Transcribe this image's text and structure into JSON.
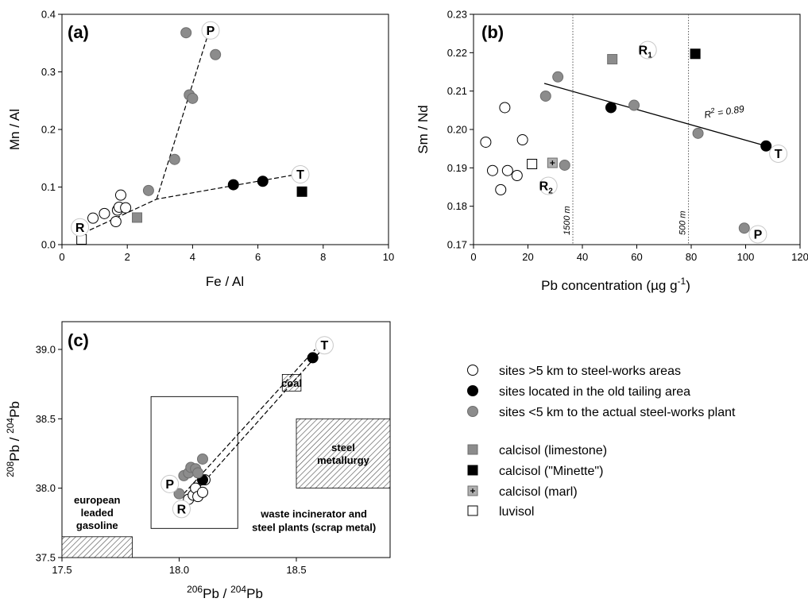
{
  "chart_data": [
    {
      "panel": "(a)",
      "type": "scatter",
      "xlabel": "Fe / Al",
      "ylabel": "Mn / Al",
      "xlim": [
        0,
        10
      ],
      "ylim": [
        0,
        0.4
      ],
      "xticks": [
        "0",
        "2",
        "4",
        "6",
        "8",
        "10"
      ],
      "yticks": [
        "0.0",
        "0.1",
        "0.2",
        "0.3",
        "0.4"
      ],
      "series": [
        {
          "class": "open-circle",
          "points": [
            [
              0.95,
              0.046
            ],
            [
              1.3,
              0.054
            ],
            [
              1.65,
              0.04
            ],
            [
              1.7,
              0.06
            ],
            [
              1.75,
              0.065
            ],
            [
              1.8,
              0.086
            ],
            [
              1.95,
              0.064
            ]
          ]
        },
        {
          "class": "black-circle",
          "points": [
            [
              5.25,
              0.104
            ],
            [
              6.15,
              0.11
            ]
          ]
        },
        {
          "class": "gray-circle",
          "points": [
            [
              2.65,
              0.094
            ],
            [
              3.45,
              0.148
            ],
            [
              3.8,
              0.368
            ],
            [
              3.9,
              0.26
            ],
            [
              4.0,
              0.254
            ],
            [
              4.7,
              0.33
            ]
          ]
        },
        {
          "class": "gray-square",
          "points": [
            [
              2.3,
              0.047
            ]
          ]
        },
        {
          "class": "black-square",
          "points": [
            [
              7.35,
              0.092
            ]
          ]
        },
        {
          "class": "open-square",
          "points": [
            [
              0.6,
              0.009
            ]
          ]
        }
      ],
      "trend_lines": [
        {
          "points": [
            [
              2.9,
              0.079
            ],
            [
              4.5,
              0.37
            ]
          ]
        },
        {
          "points": [
            [
              0.65,
              0.02
            ],
            [
              2.9,
              0.079
            ],
            [
              7.2,
              0.122
            ]
          ]
        }
      ],
      "site_labels": [
        {
          "text": "P",
          "x": 4.55,
          "y": 0.372
        },
        {
          "text": "T",
          "x": 7.3,
          "y": 0.122
        },
        {
          "text": "R",
          "x": 0.55,
          "y": 0.03
        }
      ]
    },
    {
      "panel": "(b)",
      "type": "scatter",
      "xlabel": "Pb concentration (µg g",
      "xlabel_sup": "-1",
      "xlabel_end": ")",
      "ylabel": "Sm / Nd",
      "xlim": [
        0,
        120
      ],
      "ylim": [
        0.17,
        0.23
      ],
      "xticks": [
        "0",
        "20",
        "40",
        "60",
        "80",
        "100",
        "120"
      ],
      "yticks": [
        "0.17",
        "0.18",
        "0.19",
        "0.20",
        "0.21",
        "0.22",
        "0.23"
      ],
      "series": [
        {
          "class": "open-circle",
          "points": [
            [
              4.5,
              0.1967
            ],
            [
              7,
              0.1893
            ],
            [
              10,
              0.1843
            ],
            [
              11.5,
              0.2057
            ],
            [
              12.5,
              0.1893
            ],
            [
              16,
              0.188
            ],
            [
              18,
              0.1973
            ]
          ]
        },
        {
          "class": "black-circle",
          "points": [
            [
              50.5,
              0.2057
            ],
            [
              107.5,
              0.1957
            ]
          ]
        },
        {
          "class": "gray-circle",
          "points": [
            [
              26.5,
              0.2087
            ],
            [
              31,
              0.2137
            ],
            [
              33.5,
              0.1907
            ],
            [
              59,
              0.2063
            ],
            [
              82.5,
              0.199
            ],
            [
              99.5,
              0.1743
            ]
          ]
        },
        {
          "class": "gray-square",
          "points": [
            [
              51,
              0.2183
            ]
          ]
        },
        {
          "class": "black-square",
          "points": [
            [
              81.5,
              0.2197
            ]
          ]
        },
        {
          "class": "plus-square",
          "points": [
            [
              29,
              0.1913
            ]
          ]
        },
        {
          "class": "open-square",
          "points": [
            [
              21.5,
              0.191
            ]
          ]
        }
      ],
      "regression": {
        "x": [
          26,
          107.5
        ],
        "y": [
          0.212,
          0.1957
        ],
        "label_base": "R",
        "label_sup": "2",
        "label_rest": " = 0.89"
      },
      "distance_lines": [
        {
          "x": 36.5,
          "label": "1500 m"
        },
        {
          "x": 79,
          "label": "500 m"
        }
      ],
      "site_labels": [
        {
          "text": "R",
          "sub": "1",
          "x": 64,
          "y": 0.2207
        },
        {
          "text": "R",
          "sub": "2",
          "x": 27.5,
          "y": 0.1853
        },
        {
          "text": "T",
          "x": 112,
          "y": 0.1937
        },
        {
          "text": "P",
          "x": 104.5,
          "y": 0.1727
        }
      ]
    },
    {
      "panel": "(c)",
      "type": "scatter",
      "xlabel_sup": "206",
      "xlabel_base": "Pb / ",
      "xlabel_sup2": "204",
      "xlabel_end": "Pb",
      "ylabel_sup": "208",
      "ylabel_base": "Pb / ",
      "ylabel_sup2": "204",
      "ylabel_end": "Pb",
      "xlim": [
        17.5,
        18.9
      ],
      "ylim": [
        37.5,
        39.2
      ],
      "xticks": [
        "17.5",
        "18.0",
        "18.5"
      ],
      "yticks": [
        "37.5",
        "38.0",
        "38.5",
        "39.0"
      ],
      "series": [
        {
          "class": "open-circle",
          "points": [
            [
              18.04,
              37.92
            ],
            [
              18.06,
              37.95
            ],
            [
              18.07,
              38.0
            ],
            [
              18.08,
              37.94
            ],
            [
              18.1,
              37.97
            ],
            [
              18.11,
              38.06
            ]
          ]
        },
        {
          "class": "black-circle",
          "points": [
            [
              18.1,
              38.06
            ],
            [
              18.57,
              38.94
            ]
          ]
        },
        {
          "class": "gray-circle",
          "points": [
            [
              18.0,
              37.96
            ],
            [
              18.02,
              38.09
            ],
            [
              18.04,
              38.11
            ],
            [
              18.05,
              38.15
            ],
            [
              18.07,
              38.14
            ],
            [
              18.08,
              38.11
            ],
            [
              18.1,
              38.21
            ]
          ]
        }
      ],
      "trend_lines": [
        {
          "points": [
            [
              18.02,
              37.96
            ],
            [
              18.58,
              39.0
            ]
          ]
        },
        {
          "points": [
            [
              18.04,
              37.92
            ],
            [
              18.6,
              38.98
            ]
          ]
        }
      ],
      "reference_boxes": [
        {
          "label": "coal",
          "x0": 18.44,
          "x1": 18.52,
          "y0": 38.7,
          "y1": 38.82
        },
        {
          "label1": "steel",
          "label2": "metallurgy",
          "x0": 18.5,
          "x1": 18.9,
          "y0": 38.0,
          "y1": 38.5
        },
        {
          "label1": "european",
          "label2": "leaded",
          "label3": "gasoline",
          "x0": 17.5,
          "x1": 17.8,
          "y0": 37.5,
          "y1": 37.65
        }
      ],
      "zone_box": {
        "x0": 17.88,
        "x1": 18.25,
        "y0": 37.71,
        "y1": 38.66,
        "label1": "waste incinerator and",
        "label2": "steel plants (scrap metal)"
      },
      "site_labels": [
        {
          "text": "T",
          "x": 18.62,
          "y": 39.03
        },
        {
          "text": "P",
          "x": 17.96,
          "y": 38.03
        },
        {
          "text": "R",
          "x": 18.01,
          "y": 37.85
        }
      ]
    }
  ],
  "legend": {
    "items": [
      {
        "marker": "open-circle",
        "label": "sites >5 km to steel-works areas"
      },
      {
        "marker": "black-circle",
        "label": "sites located in the old tailing area"
      },
      {
        "marker": "gray-circle",
        "label": "sites <5 km to the actual steel-works plant"
      },
      {
        "marker": "gray-square",
        "label": "calcisol (limestone)"
      },
      {
        "marker": "black-square",
        "label": "calcisol (\"Minette\")"
      },
      {
        "marker": "plus-square",
        "label": "calcisol (marl)"
      },
      {
        "marker": "open-square",
        "label": "luvisol"
      }
    ]
  },
  "colors": {
    "gray": "#8c8c8c",
    "black": "#000000",
    "white": "#ffffff"
  }
}
